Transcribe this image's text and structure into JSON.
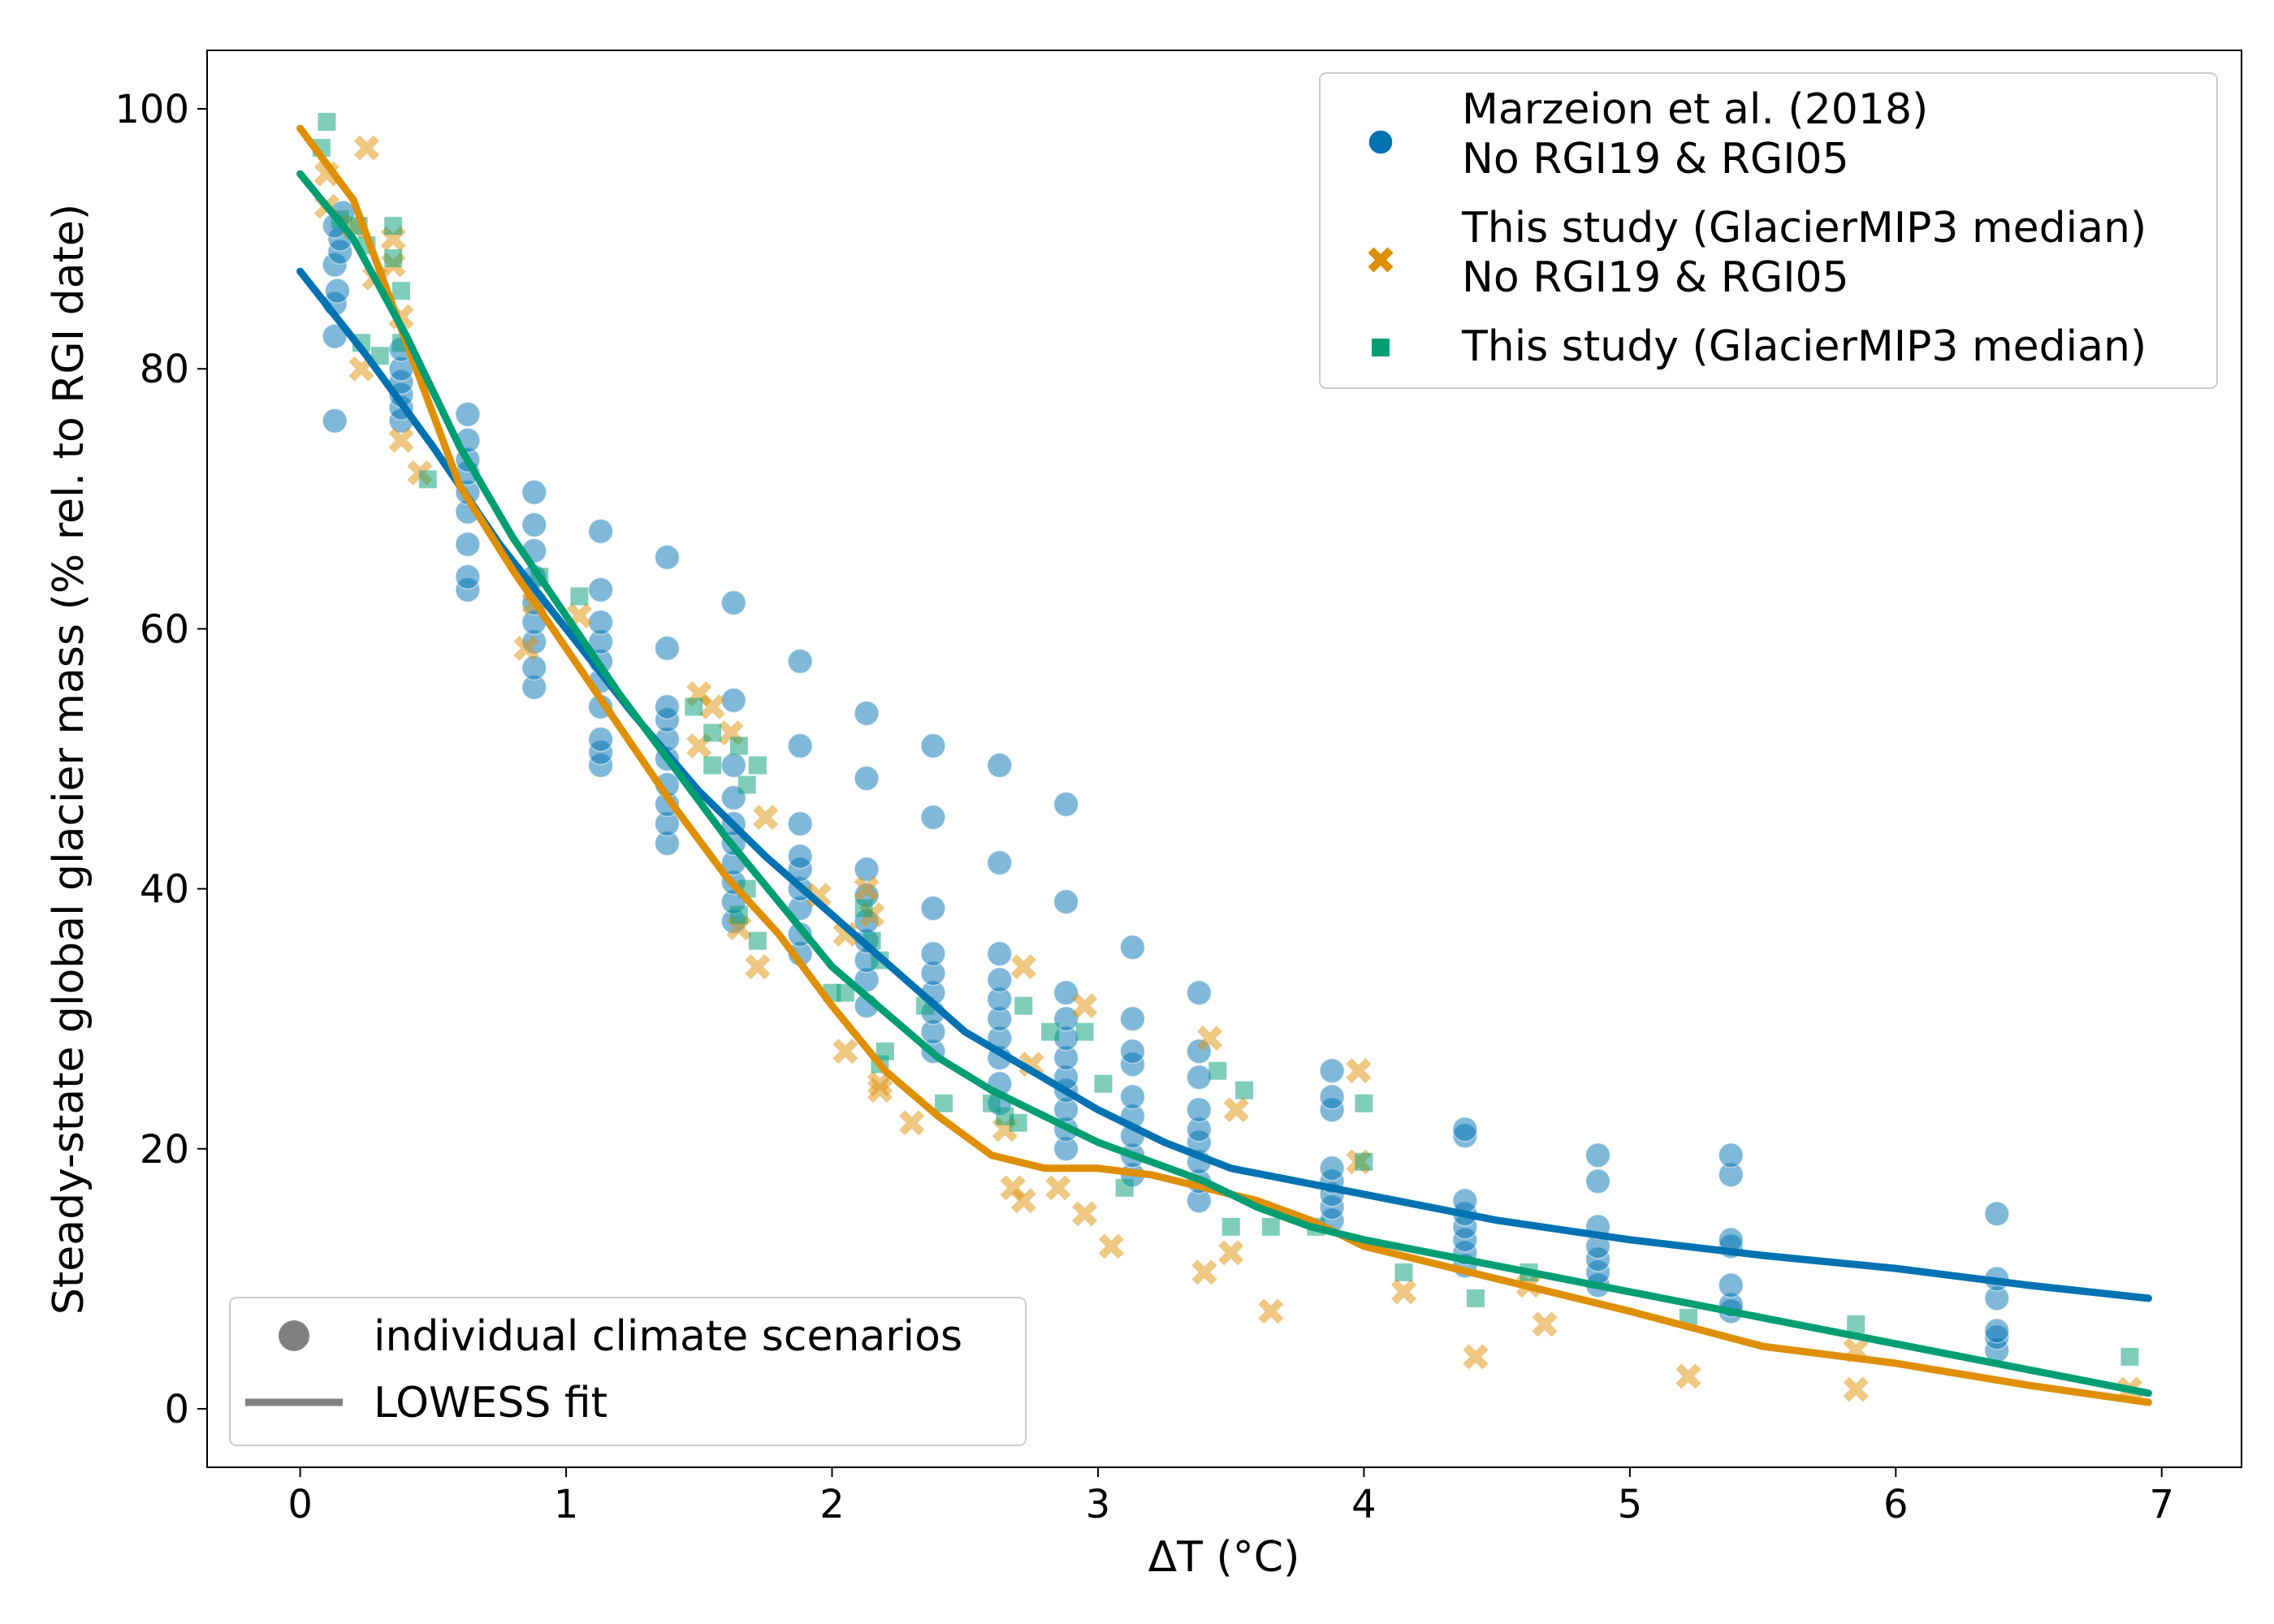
{
  "chart_data": {
    "type": "scatter",
    "xlabel": "ΔT (°C)",
    "ylabel": "Steady-state global glacier mass (% rel. to RGI date)",
    "xlim": [
      -0.35,
      7.3
    ],
    "ylim": [
      -4.5,
      104.5
    ],
    "x_ticks": [
      0,
      1,
      2,
      3,
      4,
      5,
      6,
      7
    ],
    "y_ticks": [
      0,
      20,
      40,
      60,
      80,
      100
    ],
    "grid": false,
    "legend_position": "top-right",
    "marker_legend": {
      "position": "bottom-left",
      "entries": [
        {
          "label": "individual climate scenarios",
          "kind": "marker"
        },
        {
          "label": "LOWESS fit",
          "kind": "line"
        }
      ]
    },
    "series": [
      {
        "name_lines": [
          "Marzeion et al. (2018)",
          "No RGI19 & RGI05"
        ],
        "marker": "circle",
        "color": "#0072b2",
        "points": [
          [
            0.13,
            76
          ],
          [
            0.13,
            82.5
          ],
          [
            0.13,
            85
          ],
          [
            0.14,
            86
          ],
          [
            0.13,
            88
          ],
          [
            0.15,
            89
          ],
          [
            0.15,
            90
          ],
          [
            0.13,
            91
          ],
          [
            0.16,
            92
          ],
          [
            0.38,
            76
          ],
          [
            0.38,
            77
          ],
          [
            0.38,
            78
          ],
          [
            0.38,
            79
          ],
          [
            0.38,
            80
          ],
          [
            0.38,
            81.5
          ],
          [
            0.63,
            63
          ],
          [
            0.63,
            64
          ],
          [
            0.63,
            66.5
          ],
          [
            0.63,
            69
          ],
          [
            0.63,
            70.5
          ],
          [
            0.63,
            72
          ],
          [
            0.63,
            73
          ],
          [
            0.63,
            74.5
          ],
          [
            0.63,
            76.5
          ],
          [
            0.88,
            55.5
          ],
          [
            0.88,
            57
          ],
          [
            0.88,
            59
          ],
          [
            0.88,
            60.5
          ],
          [
            0.88,
            62
          ],
          [
            0.88,
            64
          ],
          [
            0.88,
            66
          ],
          [
            0.88,
            68
          ],
          [
            0.88,
            70.5
          ],
          [
            1.13,
            49.5
          ],
          [
            1.13,
            50.5
          ],
          [
            1.13,
            51.5
          ],
          [
            1.13,
            54
          ],
          [
            1.13,
            56
          ],
          [
            1.13,
            57.5
          ],
          [
            1.13,
            59
          ],
          [
            1.13,
            60.5
          ],
          [
            1.13,
            63
          ],
          [
            1.13,
            67.5
          ],
          [
            1.38,
            43.5
          ],
          [
            1.38,
            45
          ],
          [
            1.38,
            46.5
          ],
          [
            1.38,
            48
          ],
          [
            1.38,
            50
          ],
          [
            1.38,
            51.5
          ],
          [
            1.38,
            53
          ],
          [
            1.38,
            54
          ],
          [
            1.38,
            58.5
          ],
          [
            1.38,
            65.5
          ],
          [
            1.63,
            37.5
          ],
          [
            1.63,
            39
          ],
          [
            1.63,
            40.5
          ],
          [
            1.63,
            42
          ],
          [
            1.63,
            43.5
          ],
          [
            1.63,
            45
          ],
          [
            1.63,
            47
          ],
          [
            1.63,
            49.5
          ],
          [
            1.63,
            54.5
          ],
          [
            1.63,
            62
          ],
          [
            1.88,
            35
          ],
          [
            1.88,
            36.5
          ],
          [
            1.88,
            38.5
          ],
          [
            1.88,
            40
          ],
          [
            1.88,
            41.5
          ],
          [
            1.88,
            42.5
          ],
          [
            1.88,
            45
          ],
          [
            1.88,
            51
          ],
          [
            1.88,
            57.5
          ],
          [
            2.13,
            31
          ],
          [
            2.13,
            33
          ],
          [
            2.13,
            34.5
          ],
          [
            2.13,
            36
          ],
          [
            2.13,
            37.5
          ],
          [
            2.13,
            39.5
          ],
          [
            2.13,
            41.5
          ],
          [
            2.13,
            48.5
          ],
          [
            2.13,
            53.5
          ],
          [
            2.38,
            27.5
          ],
          [
            2.38,
            29
          ],
          [
            2.38,
            30.5
          ],
          [
            2.38,
            32
          ],
          [
            2.38,
            33.5
          ],
          [
            2.38,
            35
          ],
          [
            2.38,
            38.5
          ],
          [
            2.38,
            45.5
          ],
          [
            2.38,
            51
          ],
          [
            2.63,
            23.5
          ],
          [
            2.63,
            25
          ],
          [
            2.63,
            27
          ],
          [
            2.63,
            28.5
          ],
          [
            2.63,
            30
          ],
          [
            2.63,
            31.5
          ],
          [
            2.63,
            33
          ],
          [
            2.63,
            35
          ],
          [
            2.63,
            42
          ],
          [
            2.63,
            49.5
          ],
          [
            2.88,
            20
          ],
          [
            2.88,
            21.5
          ],
          [
            2.88,
            23
          ],
          [
            2.88,
            24.5
          ],
          [
            2.88,
            25.5
          ],
          [
            2.88,
            27
          ],
          [
            2.88,
            28.5
          ],
          [
            2.88,
            30
          ],
          [
            2.88,
            32
          ],
          [
            2.88,
            39
          ],
          [
            2.88,
            46.5
          ],
          [
            3.13,
            18
          ],
          [
            3.13,
            19.5
          ],
          [
            3.13,
            21
          ],
          [
            3.13,
            22.5
          ],
          [
            3.13,
            24
          ],
          [
            3.13,
            26.5
          ],
          [
            3.13,
            27.5
          ],
          [
            3.13,
            30
          ],
          [
            3.13,
            35.5
          ],
          [
            3.38,
            16
          ],
          [
            3.38,
            17.5
          ],
          [
            3.38,
            19
          ],
          [
            3.38,
            20.5
          ],
          [
            3.38,
            21.5
          ],
          [
            3.38,
            23
          ],
          [
            3.38,
            25.5
          ],
          [
            3.38,
            27.5
          ],
          [
            3.38,
            32
          ],
          [
            3.88,
            14.5
          ],
          [
            3.88,
            15.5
          ],
          [
            3.88,
            16.5
          ],
          [
            3.88,
            17.5
          ],
          [
            3.88,
            18.5
          ],
          [
            3.88,
            23
          ],
          [
            3.88,
            24
          ],
          [
            3.88,
            26
          ],
          [
            4.38,
            11
          ],
          [
            4.38,
            12
          ],
          [
            4.38,
            13
          ],
          [
            4.38,
            14
          ],
          [
            4.38,
            15
          ],
          [
            4.38,
            16
          ],
          [
            4.38,
            21
          ],
          [
            4.38,
            21.5
          ],
          [
            4.88,
            9.5
          ],
          [
            4.88,
            10.5
          ],
          [
            4.88,
            11.5
          ],
          [
            4.88,
            12.5
          ],
          [
            4.88,
            14
          ],
          [
            4.88,
            17.5
          ],
          [
            4.88,
            19.5
          ],
          [
            5.38,
            7.5
          ],
          [
            5.38,
            8
          ],
          [
            5.38,
            9.5
          ],
          [
            5.38,
            12.5
          ],
          [
            5.38,
            13
          ],
          [
            5.38,
            18
          ],
          [
            5.38,
            19.5
          ],
          [
            6.38,
            4.5
          ],
          [
            6.38,
            5.5
          ],
          [
            6.38,
            6
          ],
          [
            6.38,
            8.5
          ],
          [
            6.38,
            10
          ],
          [
            6.38,
            15
          ]
        ]
      },
      {
        "name_lines": [
          "This study (GlacierMIP3 median)",
          "No RGI19 & RGI05"
        ],
        "marker": "x",
        "color": "#de8f05",
        "points": [
          [
            0.1,
            92.5
          ],
          [
            0.1,
            95
          ],
          [
            0.2,
            91
          ],
          [
            0.25,
            97
          ],
          [
            0.23,
            80
          ],
          [
            0.28,
            87
          ],
          [
            0.35,
            88
          ],
          [
            0.35,
            90
          ],
          [
            0.38,
            84
          ],
          [
            0.38,
            74.5
          ],
          [
            0.45,
            72
          ],
          [
            0.85,
            58.5
          ],
          [
            0.88,
            62
          ],
          [
            1.05,
            61
          ],
          [
            1.5,
            55
          ],
          [
            1.55,
            54
          ],
          [
            1.62,
            52
          ],
          [
            1.5,
            51
          ],
          [
            1.65,
            37
          ],
          [
            1.72,
            34
          ],
          [
            1.75,
            45.5
          ],
          [
            1.95,
            39.5
          ],
          [
            2.05,
            36.5
          ],
          [
            2.15,
            38
          ],
          [
            2.13,
            40
          ],
          [
            2.05,
            27.5
          ],
          [
            2.18,
            25
          ],
          [
            2.18,
            24.5
          ],
          [
            2.3,
            22
          ],
          [
            2.65,
            21.5
          ],
          [
            2.72,
            34
          ],
          [
            2.75,
            26.5
          ],
          [
            2.68,
            17
          ],
          [
            2.72,
            16
          ],
          [
            2.85,
            17
          ],
          [
            2.95,
            31
          ],
          [
            2.95,
            15
          ],
          [
            3.05,
            12.5
          ],
          [
            3.42,
            28.5
          ],
          [
            3.52,
            23
          ],
          [
            3.5,
            12
          ],
          [
            3.4,
            10.5
          ],
          [
            3.65,
            7.5
          ],
          [
            3.98,
            19
          ],
          [
            3.98,
            26
          ],
          [
            4.15,
            9
          ],
          [
            4.42,
            4
          ],
          [
            4.62,
            9.5
          ],
          [
            4.68,
            6.5
          ],
          [
            5.22,
            2.5
          ],
          [
            5.85,
            1.5
          ],
          [
            5.85,
            4.5
          ],
          [
            6.88,
            1.5
          ]
        ]
      },
      {
        "name_lines": [
          "This study (GlacierMIP3 median)"
        ],
        "marker": "square",
        "color": "#029e73",
        "points": [
          [
            0.08,
            97
          ],
          [
            0.1,
            99
          ],
          [
            0.15,
            91.5
          ],
          [
            0.22,
            91
          ],
          [
            0.25,
            89.5
          ],
          [
            0.3,
            81
          ],
          [
            0.23,
            82
          ],
          [
            0.35,
            91
          ],
          [
            0.35,
            88.5
          ],
          [
            0.38,
            86
          ],
          [
            0.38,
            82
          ],
          [
            0.48,
            71.5
          ],
          [
            0.9,
            64
          ],
          [
            1.05,
            62.5
          ],
          [
            1.48,
            54
          ],
          [
            1.55,
            52
          ],
          [
            1.55,
            49.5
          ],
          [
            1.65,
            51
          ],
          [
            1.68,
            48
          ],
          [
            1.72,
            49.5
          ],
          [
            1.72,
            36
          ],
          [
            1.65,
            38
          ],
          [
            1.68,
            40
          ],
          [
            2.0,
            32
          ],
          [
            2.05,
            32
          ],
          [
            2.12,
            38.5
          ],
          [
            2.15,
            36
          ],
          [
            2.18,
            34.5
          ],
          [
            2.2,
            27.5
          ],
          [
            2.18,
            26.5
          ],
          [
            2.35,
            31
          ],
          [
            2.42,
            23.5
          ],
          [
            2.6,
            23.5
          ],
          [
            2.65,
            22.5
          ],
          [
            2.7,
            22
          ],
          [
            2.72,
            31
          ],
          [
            2.82,
            29
          ],
          [
            2.95,
            29
          ],
          [
            3.02,
            25
          ],
          [
            3.1,
            17
          ],
          [
            3.45,
            26
          ],
          [
            3.55,
            24.5
          ],
          [
            3.5,
            14
          ],
          [
            3.65,
            14
          ],
          [
            3.82,
            14
          ],
          [
            4.0,
            23.5
          ],
          [
            4.0,
            19
          ],
          [
            4.15,
            10.5
          ],
          [
            4.42,
            8.5
          ],
          [
            4.62,
            10.5
          ],
          [
            5.22,
            7
          ],
          [
            5.85,
            6.5
          ],
          [
            6.88,
            4
          ]
        ]
      }
    ],
    "lowess_fits": [
      {
        "color": "#0072b2",
        "x": [
          0,
          0.25,
          0.5,
          0.75,
          1,
          1.25,
          1.5,
          1.75,
          2,
          2.25,
          2.5,
          2.75,
          3,
          3.25,
          3.5,
          3.75,
          4,
          4.5,
          5,
          5.5,
          6,
          6.5,
          6.95
        ],
        "y": [
          87.5,
          81,
          74,
          66.5,
          60,
          53.5,
          47.5,
          42.5,
          38,
          33.5,
          29,
          26,
          23,
          20.5,
          18.5,
          17.5,
          16.5,
          14.5,
          13,
          11.8,
          10.8,
          9.5,
          8.5
        ]
      },
      {
        "color": "#de8f05",
        "x": [
          0,
          0.2,
          0.4,
          0.6,
          0.8,
          1,
          1.2,
          1.4,
          1.6,
          1.8,
          2,
          2.2,
          2.4,
          2.6,
          2.8,
          3,
          3.2,
          3.4,
          3.6,
          3.8,
          4,
          4.5,
          5,
          5.5,
          6,
          6.5,
          6.95
        ],
        "y": [
          98.5,
          93,
          82,
          71,
          64.5,
          58.5,
          52.5,
          46.5,
          41,
          36.5,
          31,
          26,
          22.5,
          19.5,
          18.5,
          18.5,
          18,
          17,
          16,
          14.5,
          12.5,
          10,
          7.5,
          4.8,
          3.5,
          1.8,
          0.5
        ]
      },
      {
        "color": "#029e73",
        "x": [
          0,
          0.2,
          0.4,
          0.6,
          0.8,
          1,
          1.2,
          1.4,
          1.6,
          1.8,
          2,
          2.2,
          2.4,
          2.6,
          2.8,
          3,
          3.2,
          3.4,
          3.6,
          3.8,
          4,
          4.5,
          5,
          5.5,
          6,
          6.5,
          6.95
        ],
        "y": [
          95,
          90,
          82.5,
          74,
          67,
          61,
          55,
          49.5,
          44,
          39,
          34,
          30.5,
          27,
          24.5,
          22.5,
          20.5,
          19,
          17.5,
          15.5,
          14,
          13,
          11,
          9,
          7,
          5,
          3,
          1.2
        ]
      }
    ]
  }
}
